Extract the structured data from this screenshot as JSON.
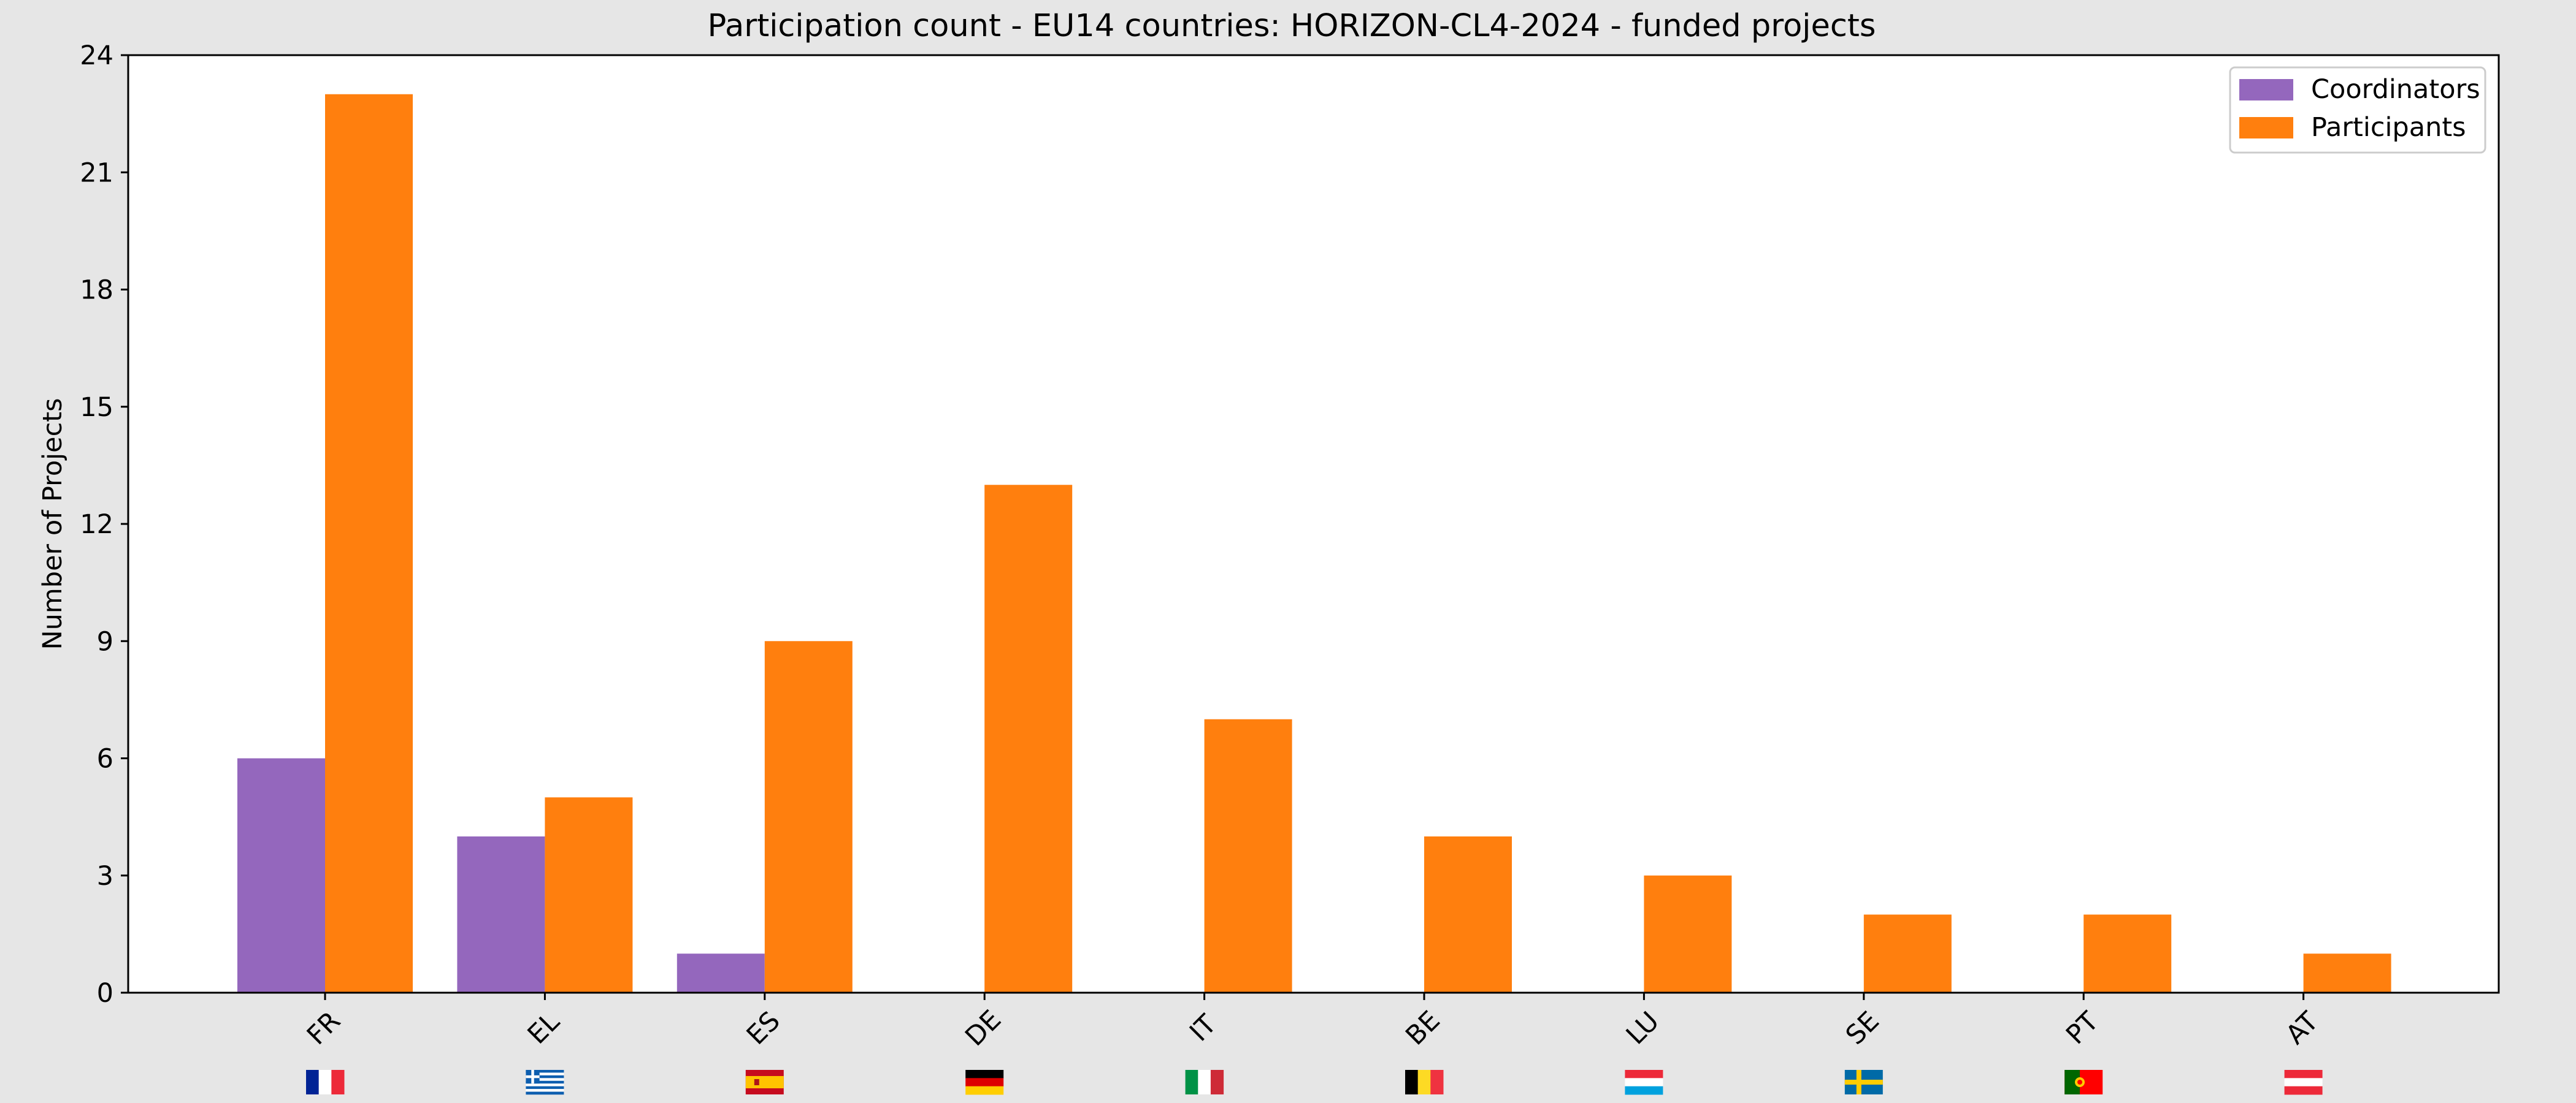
{
  "chart_data": {
    "type": "bar",
    "title": "Participation count - EU14 countries: HORIZON-CL4-2024 - funded projects",
    "xlabel": "",
    "ylabel": "Number of Projects",
    "categories": [
      "FR",
      "EL",
      "ES",
      "DE",
      "IT",
      "BE",
      "LU",
      "SE",
      "PT",
      "AT"
    ],
    "series": [
      {
        "name": "Coordinators",
        "color": "#9467bd",
        "values": [
          6,
          4,
          1,
          0,
          0,
          0,
          0,
          0,
          0,
          0
        ]
      },
      {
        "name": "Participants",
        "color": "#ff7f0e",
        "values": [
          23,
          5,
          9,
          13,
          7,
          4,
          3,
          2,
          2,
          1
        ]
      }
    ],
    "ylim": [
      0,
      24
    ],
    "yticks": [
      0,
      3,
      6,
      9,
      12,
      15,
      18,
      21,
      24
    ],
    "grid": false,
    "legend_position": "top-right",
    "category_icons": [
      "flag-france",
      "flag-greece",
      "flag-spain",
      "flag-germany",
      "flag-italy",
      "flag-belgium",
      "flag-luxembourg",
      "flag-sweden",
      "flag-portugal",
      "flag-austria"
    ]
  },
  "colors": {
    "figure_background": "#e6e6e6",
    "plot_background": "#ffffff",
    "axis": "#000000"
  }
}
